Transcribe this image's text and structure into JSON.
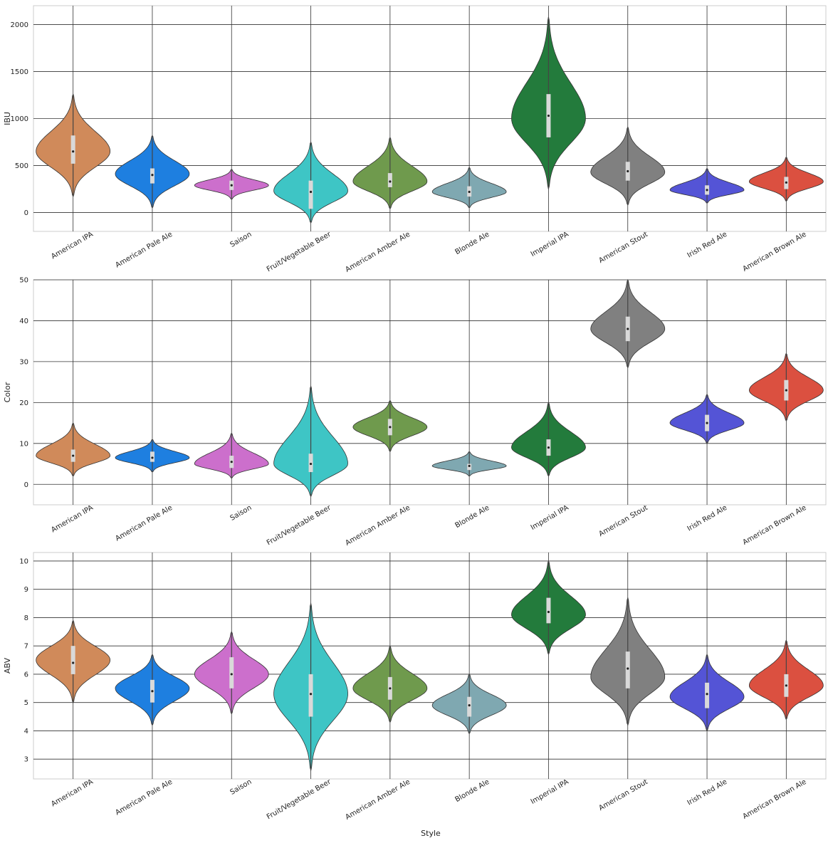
{
  "figure": {
    "xlabel": "Style"
  },
  "chart_data": [
    {
      "type": "violin",
      "ylabel": "IBU",
      "ylim": [
        -200,
        2200
      ],
      "yticks": [
        0,
        500,
        1000,
        1500,
        2000
      ],
      "grid": true,
      "categories": [
        "American IPA",
        "American Pale Ale",
        "Saison",
        "Fruit/Vegetable Beer",
        "American Amber Ale",
        "Blonde Ale",
        "Imperial IPA",
        "American Stout",
        "Irish Red Ale",
        "American Brown Ale"
      ],
      "colors": [
        "#d08a5a",
        "#1e7fe0",
        "#cc6fcc",
        "#3ec5c5",
        "#6f9a4d",
        "#7fa8b1",
        "#237b3c",
        "#808080",
        "#5454d6",
        "#db5040"
      ],
      "distributions": [
        {
          "min": 170,
          "q1": 520,
          "median": 650,
          "q3": 820,
          "max": 1260,
          "mode": 650
        },
        {
          "min": 50,
          "q1": 310,
          "median": 400,
          "q3": 470,
          "max": 820,
          "mode": 410
        },
        {
          "min": 140,
          "q1": 240,
          "median": 290,
          "q3": 340,
          "max": 460,
          "mode": 290
        },
        {
          "min": -110,
          "q1": 40,
          "median": 220,
          "q3": 340,
          "max": 750,
          "mode": 230
        },
        {
          "min": 40,
          "q1": 270,
          "median": 330,
          "q3": 420,
          "max": 800,
          "mode": 330
        },
        {
          "min": 50,
          "q1": 170,
          "median": 220,
          "q3": 280,
          "max": 480,
          "mode": 220
        },
        {
          "min": 250,
          "q1": 800,
          "median": 1030,
          "q3": 1260,
          "max": 2080,
          "mode": 1000
        },
        {
          "min": 80,
          "q1": 340,
          "median": 440,
          "q3": 540,
          "max": 910,
          "mode": 430
        },
        {
          "min": 100,
          "q1": 190,
          "median": 240,
          "q3": 290,
          "max": 470,
          "mode": 240
        },
        {
          "min": 120,
          "q1": 250,
          "median": 320,
          "q3": 380,
          "max": 590,
          "mode": 330
        }
      ]
    },
    {
      "type": "violin",
      "ylabel": "Color",
      "ylim": [
        -5,
        50
      ],
      "yticks": [
        0,
        10,
        20,
        30,
        40,
        50
      ],
      "grid": true,
      "categories": [
        "American IPA",
        "American Pale Ale",
        "Saison",
        "Fruit/Vegetable Beer",
        "American Amber Ale",
        "Blonde Ale",
        "Imperial IPA",
        "American Stout",
        "Irish Red Ale",
        "American Brown Ale"
      ],
      "colors": [
        "#d08a5a",
        "#1e7fe0",
        "#cc6fcc",
        "#3ec5c5",
        "#6f9a4d",
        "#7fa8b1",
        "#237b3c",
        "#808080",
        "#5454d6",
        "#db5040"
      ],
      "distributions": [
        {
          "min": 2,
          "q1": 5.5,
          "median": 7,
          "q3": 8.5,
          "max": 15,
          "mode": 7
        },
        {
          "min": 3,
          "q1": 5.5,
          "median": 6.5,
          "q3": 8,
          "max": 11,
          "mode": 6.5
        },
        {
          "min": 1.5,
          "q1": 4,
          "median": 5.5,
          "q3": 7,
          "max": 12.5,
          "mode": 5
        },
        {
          "min": -3,
          "q1": 3,
          "median": 5,
          "q3": 7.5,
          "max": 24,
          "mode": 5
        },
        {
          "min": 8,
          "q1": 12,
          "median": 14,
          "q3": 16,
          "max": 20.5,
          "mode": 14
        },
        {
          "min": 2,
          "q1": 3.5,
          "median": 4.5,
          "q3": 5,
          "max": 8,
          "mode": 4.5
        },
        {
          "min": 2,
          "q1": 7,
          "median": 9,
          "q3": 11,
          "max": 20,
          "mode": 9
        },
        {
          "min": 28.5,
          "q1": 35,
          "median": 38,
          "q3": 41,
          "max": 50,
          "mode": 38
        },
        {
          "min": 10,
          "q1": 13,
          "median": 15,
          "q3": 17,
          "max": 22,
          "mode": 15
        },
        {
          "min": 15.5,
          "q1": 20.5,
          "median": 23,
          "q3": 25.5,
          "max": 32,
          "mode": 23
        }
      ]
    },
    {
      "type": "violin",
      "ylabel": "ABV",
      "ylim": [
        2.3,
        10.3
      ],
      "yticks": [
        3,
        4,
        5,
        6,
        7,
        8,
        9,
        10
      ],
      "grid": true,
      "categories": [
        "American IPA",
        "American Pale Ale",
        "Saison",
        "Fruit/Vegetable Beer",
        "American Amber Ale",
        "Blonde Ale",
        "Imperial IPA",
        "American Stout",
        "Irish Red Ale",
        "American Brown Ale"
      ],
      "colors": [
        "#d08a5a",
        "#1e7fe0",
        "#cc6fcc",
        "#3ec5c5",
        "#6f9a4d",
        "#7fa8b1",
        "#237b3c",
        "#808080",
        "#5454d6",
        "#db5040"
      ],
      "distributions": [
        {
          "min": 5,
          "q1": 6,
          "median": 6.4,
          "q3": 7,
          "max": 7.9,
          "mode": 6.5
        },
        {
          "min": 4.2,
          "q1": 5,
          "median": 5.4,
          "q3": 5.8,
          "max": 6.7,
          "mode": 5.5
        },
        {
          "min": 4.6,
          "q1": 5.5,
          "median": 6,
          "q3": 6.6,
          "max": 7.5,
          "mode": 6
        },
        {
          "min": 2.6,
          "q1": 4.5,
          "median": 5.3,
          "q3": 6,
          "max": 8.5,
          "mode": 5.3
        },
        {
          "min": 4.3,
          "q1": 5.1,
          "median": 5.5,
          "q3": 5.9,
          "max": 7,
          "mode": 5.5
        },
        {
          "min": 3.9,
          "q1": 4.5,
          "median": 4.9,
          "q3": 5.2,
          "max": 6,
          "mode": 4.9
        },
        {
          "min": 6.7,
          "q1": 7.8,
          "median": 8.2,
          "q3": 8.7,
          "max": 10,
          "mode": 8.1
        },
        {
          "min": 4.2,
          "q1": 5.5,
          "median": 6.2,
          "q3": 6.8,
          "max": 8.7,
          "mode": 5.9
        },
        {
          "min": 4,
          "q1": 4.8,
          "median": 5.3,
          "q3": 5.7,
          "max": 6.7,
          "mode": 5.2
        },
        {
          "min": 4.4,
          "q1": 5.2,
          "median": 5.6,
          "q3": 6,
          "max": 7.2,
          "mode": 5.6
        }
      ]
    }
  ]
}
